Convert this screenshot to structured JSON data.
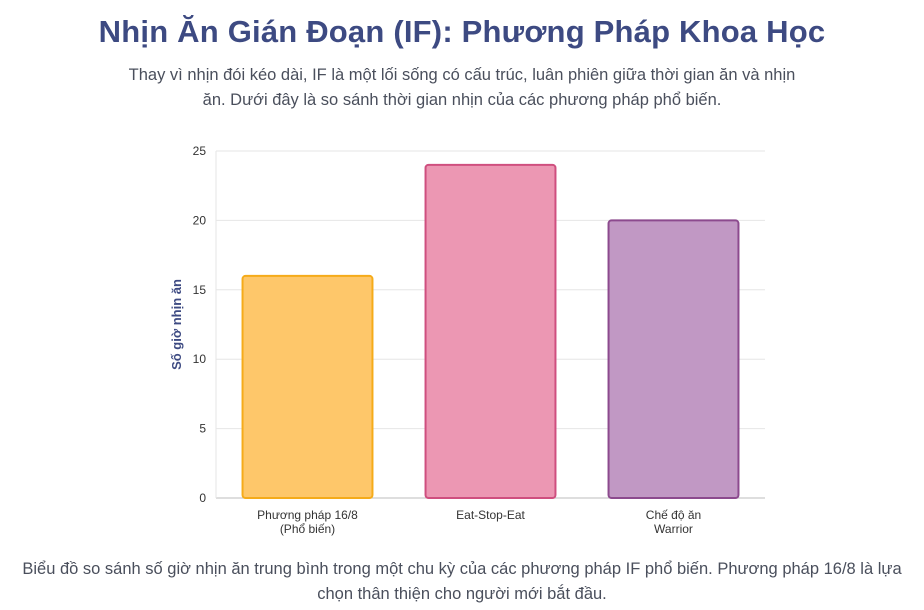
{
  "header": {
    "title": "Nhịn Ăn Gián Đoạn (IF): Phương Pháp Khoa Học",
    "subtitle": "Thay vì nhịn đói kéo dài, IF là một lối sống có cấu trúc, luân phiên giữa thời gian ăn và nhịn ăn. Dưới đây là so sánh thời gian nhịn của các phương pháp phổ biến."
  },
  "chart_data": {
    "type": "bar",
    "categories": [
      [
        "Phương pháp 16/8",
        "(Phổ biến)"
      ],
      [
        "Eat-Stop-Eat"
      ],
      [
        "Chế độ ăn",
        "Warrior"
      ]
    ],
    "values": [
      16,
      24,
      20
    ],
    "ylabel": "Số giờ nhịn ăn",
    "xlabel": "",
    "ylim": [
      0,
      25
    ],
    "yticks": [
      0,
      5,
      10,
      15,
      20,
      25
    ],
    "grid": true,
    "colors": {
      "fills": [
        "#fec76a",
        "#ec97b3",
        "#c198c4"
      ],
      "strokes": [
        "#f5ab1a",
        "#cf4f7f",
        "#8c4a8e"
      ]
    }
  },
  "footer": {
    "caption": "Biểu đồ so sánh số giờ nhịn ăn trung bình trong một chu kỳ của các phương pháp IF phổ biến. Phương pháp 16/8 là lựa chọn thân thiện cho người mới bắt đầu."
  }
}
